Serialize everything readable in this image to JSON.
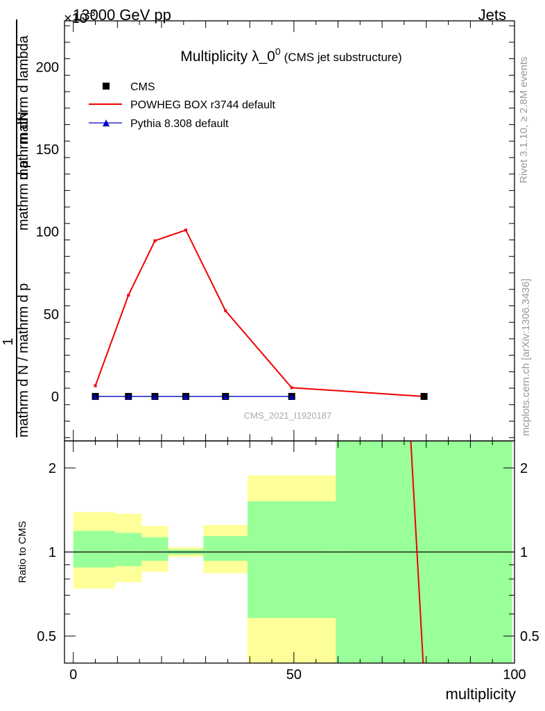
{
  "header": {
    "left": "13000 GeV pp",
    "right": "Jets",
    "scale_factor": "×10",
    "scale_exp": "-3"
  },
  "side_labels": {
    "rivet": "Rivet 3.1.10, ≥ 2.8M events",
    "mcplots": "mcplots.cern.ch [arXiv:1306.3436]"
  },
  "chart_data": [
    {
      "type": "line",
      "title": "Multiplicity λ_0",
      "title_sup": "0",
      "subtitle": "(CMS jet substructure)",
      "watermark": "CMS_2021_I1920187",
      "ylabel_num": "mathrm dN",
      "ylabel_num_prefix": "1",
      "ylabel_den": "mathrm d N / mathrm d p_T mathrm d p_T mathrm d lambda",
      "ylabel_den_display": "mathrm d N / mathrm d p",
      "ylabel_den_mid": "mathrm d p",
      "ylabel_den_end": "mathrm d lambda",
      "xlabel": "multiplicity",
      "xlim": [
        -2,
        100
      ],
      "ylim": [
        -27,
        228
      ],
      "y_scale": "×10^-3",
      "y_ticks": [
        0,
        50,
        100,
        150,
        200
      ],
      "x_ticks": [
        0,
        50,
        100
      ],
      "legend_placement": "top-left",
      "series": [
        {
          "name": "CMS",
          "marker": "square",
          "color": "#000000",
          "x": [
            5,
            12.5,
            18.5,
            25.5,
            34.5,
            49.5,
            79.5
          ],
          "y": [
            0,
            0,
            0,
            0,
            0,
            0,
            0
          ]
        },
        {
          "name": "POWHEG BOX r3744 default",
          "marker": "line",
          "color": "#ee0000",
          "x": [
            5,
            12.5,
            18.5,
            25.5,
            34.5,
            49.5,
            79.5
          ],
          "y": [
            6.5,
            61.5,
            94.5,
            101,
            52,
            5.3,
            0
          ]
        },
        {
          "name": "Pythia 8.308 default",
          "marker": "triangle",
          "color": "#0000cc",
          "x": [
            5,
            12.5,
            18.5,
            25.5,
            34.5,
            49.5
          ],
          "y": [
            0,
            0,
            0,
            0,
            0,
            0
          ]
        }
      ]
    },
    {
      "type": "area",
      "ylabel": "Ratio to CMS",
      "xlabel": "multiplicity",
      "xlim": [
        -2,
        100
      ],
      "ylim": [
        0.4,
        2.5
      ],
      "y_scale": "log",
      "y_ticks": [
        0.5,
        1,
        2
      ],
      "reference_line": 1,
      "bands": [
        {
          "x_from": 0,
          "x_to": 9.5,
          "yellow": [
            0.74,
            1.39
          ],
          "green": [
            0.88,
            1.19
          ]
        },
        {
          "x_from": 9.5,
          "x_to": 15.5,
          "yellow": [
            0.78,
            1.37
          ],
          "green": [
            0.89,
            1.17
          ]
        },
        {
          "x_from": 15.5,
          "x_to": 21.5,
          "yellow": [
            0.85,
            1.24
          ],
          "green": [
            0.93,
            1.13
          ]
        },
        {
          "x_from": 21.5,
          "x_to": 29.5,
          "yellow": [
            0.96,
            1.04
          ],
          "green": [
            0.98,
            1.02
          ]
        },
        {
          "x_from": 29.5,
          "x_to": 39.5,
          "yellow": [
            0.84,
            1.25
          ],
          "green": [
            0.93,
            1.14
          ]
        },
        {
          "x_from": 39.5,
          "x_to": 59.5,
          "yellow": [
            0.4,
            1.88
          ],
          "green": [
            0.58,
            1.52
          ]
        },
        {
          "x_from": 59.5,
          "x_to": 99.5,
          "yellow": [
            0.4,
            2.5
          ],
          "green": [
            0.4,
            2.5
          ]
        }
      ],
      "series": [
        {
          "name": "POWHEG BOX r3744 default",
          "color": "#ee0000",
          "x": [
            76.5,
            79.3
          ],
          "y": [
            2.5,
            0.4
          ]
        }
      ]
    }
  ]
}
